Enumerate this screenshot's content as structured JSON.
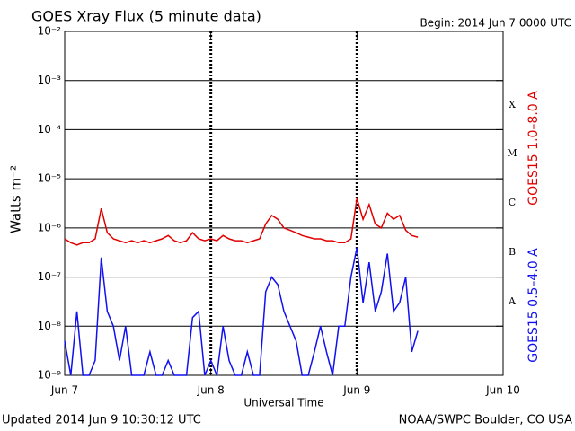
{
  "chart_data": {
    "type": "line",
    "title": "GOES Xray Flux (5 minute data)",
    "subtitle": "Begin:  2014 Jun 7 0000 UTC",
    "xlabel": "Universal Time",
    "ylabel": "Watts m⁻²",
    "footer_left": "Updated 2014 Jun  9 10:30:12 UTC",
    "footer_right": "NOAA/SWPC Boulder, CO USA",
    "annotations": [
      "X",
      "M",
      "C",
      "B",
      "A"
    ],
    "log": true,
    "grid": true,
    "xlim": [
      0,
      72
    ],
    "xticks": [
      {
        "value": 0,
        "label": "Jun 7"
      },
      {
        "value": 24,
        "label": "Jun 8"
      },
      {
        "value": 48,
        "label": "Jun 9"
      },
      {
        "value": 72,
        "label": "Jun 10"
      }
    ],
    "ylim": [
      1e-09,
      0.01
    ],
    "yticks": [
      {
        "value": 1e-09,
        "label": "10⁻⁹"
      },
      {
        "value": 1e-08,
        "label": "10⁻⁸"
      },
      {
        "value": 1e-07,
        "label": "10⁻⁷"
      },
      {
        "value": 1e-06,
        "label": "10⁻⁶"
      },
      {
        "value": 1e-05,
        "label": "10⁻⁵"
      },
      {
        "value": 0.0001,
        "label": "10⁻⁴"
      },
      {
        "value": 0.001,
        "label": "10⁻³"
      },
      {
        "value": 0.01,
        "label": "10⁻²"
      }
    ],
    "x": [
      0,
      1,
      2,
      3,
      4,
      5,
      6,
      7,
      8,
      9,
      10,
      11,
      12,
      13,
      14,
      15,
      16,
      17,
      18,
      19,
      20,
      21,
      22,
      23,
      24,
      25,
      26,
      27,
      28,
      29,
      30,
      31,
      32,
      33,
      34,
      35,
      36,
      37,
      38,
      39,
      40,
      41,
      42,
      43,
      44,
      45,
      46,
      47,
      48,
      49,
      50,
      51,
      52,
      53,
      54,
      55,
      56,
      57,
      58
    ],
    "series": [
      {
        "name": "GOES15 1.0–8.0 A",
        "color": "#e00000",
        "values": [
          6e-07,
          5e-07,
          4.5e-07,
          5e-07,
          5e-07,
          6e-07,
          2.5e-06,
          8e-07,
          6e-07,
          5.5e-07,
          5e-07,
          5.5e-07,
          5e-07,
          5.5e-07,
          5e-07,
          5.5e-07,
          6e-07,
          7e-07,
          5.5e-07,
          5e-07,
          5.5e-07,
          8e-07,
          6e-07,
          5.5e-07,
          6e-07,
          5.5e-07,
          7e-07,
          6e-07,
          5.5e-07,
          5.5e-07,
          5e-07,
          5.5e-07,
          6e-07,
          1.2e-06,
          1.8e-06,
          1.5e-06,
          1e-06,
          9e-07,
          8e-07,
          7e-07,
          6.5e-07,
          6e-07,
          6e-07,
          5.5e-07,
          5.5e-07,
          5e-07,
          5e-07,
          6e-07,
          4e-06,
          1.5e-06,
          3e-06,
          1.2e-06,
          1e-06,
          2e-06,
          1.5e-06,
          1.8e-06,
          9e-07,
          7e-07,
          6.5e-07
        ]
      },
      {
        "name": "GOES15 0.5–4.0 A",
        "color": "#1010f0",
        "values": [
          5e-09,
          1e-09,
          2e-08,
          1e-09,
          1e-09,
          2e-09,
          2.5e-07,
          2e-08,
          1e-08,
          2e-09,
          1e-08,
          1e-09,
          1e-09,
          1e-09,
          3e-09,
          1e-09,
          1e-09,
          2e-09,
          1e-09,
          1e-09,
          1e-09,
          1.5e-08,
          2e-08,
          1e-09,
          2e-09,
          1e-09,
          1e-08,
          2e-09,
          1e-09,
          1e-09,
          3e-09,
          1e-09,
          1e-09,
          5e-08,
          1e-07,
          7e-08,
          2e-08,
          1e-08,
          5e-09,
          1e-09,
          1e-09,
          3e-09,
          1e-08,
          3e-09,
          1e-09,
          1e-08,
          1e-08,
          1e-07,
          4e-07,
          3e-08,
          2e-07,
          2e-08,
          5e-08,
          3e-07,
          2e-08,
          3e-08,
          1e-07,
          3e-09,
          8e-09
        ]
      }
    ]
  }
}
